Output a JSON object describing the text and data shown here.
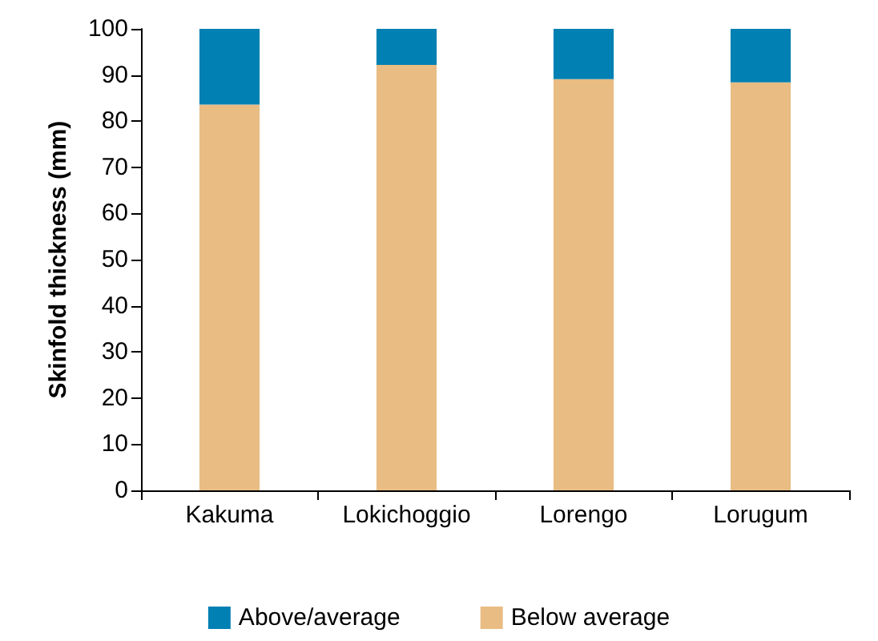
{
  "chart_data": {
    "type": "bar",
    "ylabel": "Skinfold thickness (mm)",
    "categories": [
      "Kakuma",
      "Lokichoggio",
      "Lorengo",
      "Lorugum"
    ],
    "stacked": true,
    "ylim": [
      0,
      100
    ],
    "yticks": [
      0,
      10,
      20,
      30,
      40,
      50,
      60,
      70,
      80,
      90,
      100
    ],
    "grid": false,
    "legend": "bottom",
    "series": [
      {
        "name": "Below average",
        "color": "#e9bc83",
        "values": [
          83.6,
          92.2,
          89.1,
          88.4
        ]
      },
      {
        "name": "Above/average",
        "color": "#0080b3",
        "values": [
          16.4,
          7.8,
          10.9,
          11.6
        ]
      }
    ]
  }
}
